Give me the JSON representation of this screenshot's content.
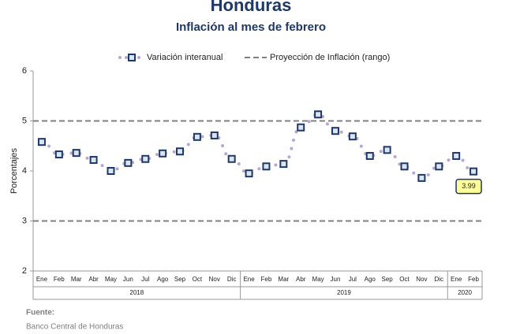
{
  "chart_data": {
    "type": "line",
    "title": "Honduras",
    "subtitle": "Inflación al mes de febrero",
    "y_label": "Porcentajes",
    "groups": [
      {
        "label": "2018",
        "categories": [
          "Ene",
          "Feb",
          "Mar",
          "Abr",
          "May",
          "Jun",
          "Jul",
          "Ago",
          "Sep",
          "Oct",
          "Nov",
          "Dic"
        ]
      },
      {
        "label": "2019",
        "categories": [
          "Ene",
          "Feb",
          "Mar",
          "Abr",
          "May",
          "Jun",
          "Jul",
          "Ago",
          "Sep",
          "Oct",
          "Nov",
          "Dic"
        ]
      },
      {
        "label": "2020",
        "categories": [
          "Ene",
          "Feb"
        ]
      }
    ],
    "series": [
      {
        "name": "Variación interanual",
        "color": "#1f3864",
        "fill": "#dbe5f1",
        "line_color": "#b4a7d6",
        "values": [
          4.58,
          4.33,
          4.36,
          4.22,
          4.0,
          4.16,
          4.24,
          4.35,
          4.39,
          4.68,
          4.71,
          4.24,
          3.95,
          4.09,
          4.14,
          4.87,
          5.13,
          4.8,
          4.69,
          4.3,
          4.42,
          4.09,
          3.86,
          4.09,
          4.3,
          3.99
        ]
      },
      {
        "name": "Proyección de Inflación (rango)",
        "color": "#808080",
        "values": [
          3,
          5
        ]
      }
    ],
    "ylim": [
      2,
      6
    ],
    "yticks": [
      2,
      3,
      4,
      5,
      6
    ],
    "source_label": "Fuente:",
    "source": "Banco Central de Honduras"
  }
}
